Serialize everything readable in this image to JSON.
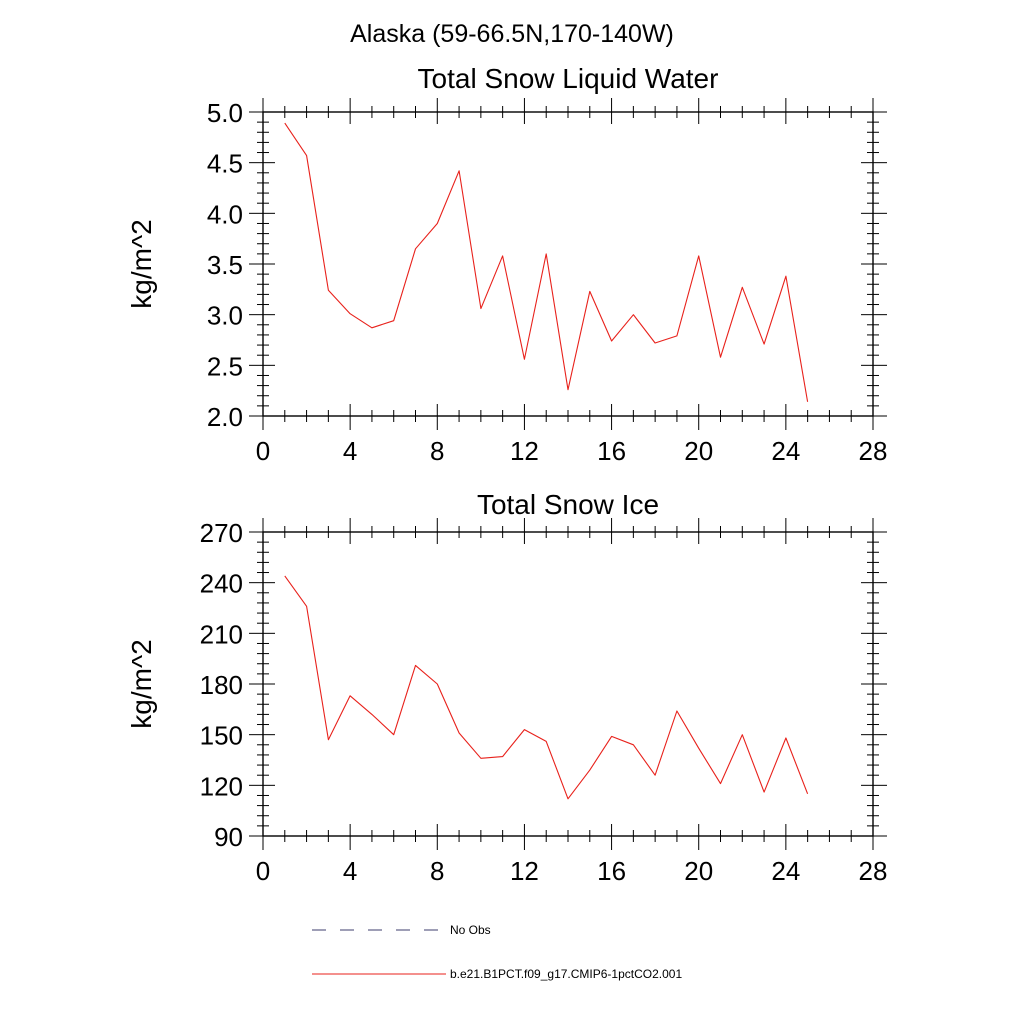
{
  "header": {
    "title": "Alaska (59-66.5N,170-140W)"
  },
  "chart_data": [
    {
      "type": "line",
      "title": "Total Snow Liquid Water",
      "xlabel": "",
      "ylabel": "kg/m^2",
      "xlim": [
        0,
        28
      ],
      "ylim": [
        2.0,
        5.0
      ],
      "x_ticks": [
        "0",
        "4",
        "8",
        "12",
        "16",
        "20",
        "24",
        "28"
      ],
      "y_ticks": [
        "2.0",
        "2.5",
        "3.0",
        "3.5",
        "4.0",
        "4.5",
        "5.0"
      ],
      "grid": false,
      "series": [
        {
          "name": "b.e21.B1PCT.f09_g17.CMIP6-1pctCO2.001",
          "color": "#e8211b",
          "x": [
            1,
            2,
            3,
            4,
            5,
            6,
            7,
            8,
            9,
            10,
            11,
            12,
            13,
            14,
            15,
            16,
            17,
            18,
            19,
            20,
            21,
            22,
            23,
            24,
            25
          ],
          "values": [
            4.89,
            4.57,
            3.24,
            3.01,
            2.87,
            2.94,
            3.65,
            3.9,
            4.42,
            3.06,
            3.58,
            2.56,
            3.6,
            2.26,
            3.23,
            2.74,
            3.0,
            2.72,
            2.79,
            3.58,
            2.58,
            3.27,
            2.71,
            3.38,
            2.14
          ]
        }
      ]
    },
    {
      "type": "line",
      "title": "Total Snow Ice",
      "xlabel": "",
      "ylabel": "kg/m^2",
      "xlim": [
        0,
        28
      ],
      "ylim": [
        90,
        270
      ],
      "x_ticks": [
        "0",
        "4",
        "8",
        "12",
        "16",
        "20",
        "24",
        "28"
      ],
      "y_ticks": [
        "90",
        "120",
        "150",
        "180",
        "210",
        "240",
        "270"
      ],
      "grid": false,
      "series": [
        {
          "name": "b.e21.B1PCT.f09_g17.CMIP6-1pctCO2.001",
          "color": "#e8211b",
          "x": [
            1,
            2,
            3,
            4,
            5,
            6,
            7,
            8,
            9,
            10,
            11,
            12,
            13,
            14,
            15,
            16,
            17,
            18,
            19,
            20,
            21,
            22,
            23,
            24,
            25
          ],
          "values": [
            244,
            226,
            147,
            173,
            162,
            150,
            191,
            180,
            151,
            136,
            137,
            153,
            146,
            112,
            129,
            149,
            144,
            126,
            164,
            142,
            121,
            150,
            116,
            148,
            115
          ]
        }
      ]
    }
  ],
  "legend": {
    "placement": "bottom",
    "items": [
      {
        "label": "No Obs",
        "color": "#3c3c6e",
        "style": "dashed"
      },
      {
        "label": "b.e21.B1PCT.f09_g17.CMIP6-1pctCO2.001",
        "color": "#e8211b",
        "style": "solid"
      }
    ]
  }
}
